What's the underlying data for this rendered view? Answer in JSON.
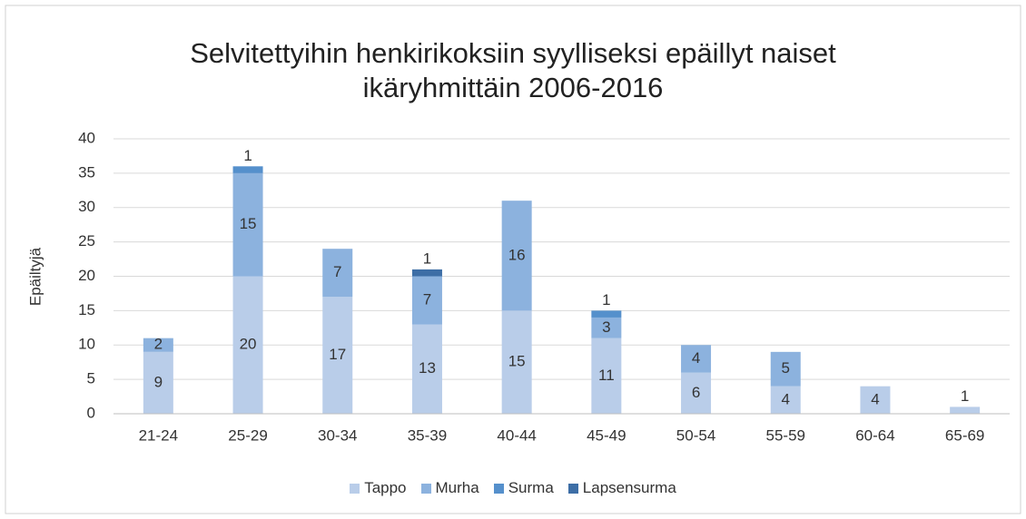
{
  "chart_data": {
    "type": "stacked_bar",
    "title": "Selvitettyihin henkirikoksiin syylliseksi epäillyt naiset ikäryhmittäin 2006-2016",
    "ylabel": "Epäiltyjä",
    "categories": [
      "21-24",
      "25-29",
      "30-34",
      "35-39",
      "40-44",
      "45-49",
      "50-54",
      "55-59",
      "60-64",
      "65-69"
    ],
    "series": [
      {
        "name": "Tappo",
        "color": "#b9cde9",
        "values": [
          9,
          20,
          17,
          13,
          15,
          11,
          6,
          4,
          4,
          1
        ]
      },
      {
        "name": "Murha",
        "color": "#8cb2de",
        "values": [
          2,
          15,
          7,
          7,
          16,
          3,
          4,
          5,
          null,
          null
        ]
      },
      {
        "name": "Surma",
        "color": "#5590cc",
        "values": [
          null,
          1,
          null,
          null,
          null,
          1,
          null,
          null,
          null,
          null
        ]
      },
      {
        "name": "Lapsensurma",
        "color": "#3d6ea6",
        "values": [
          null,
          null,
          null,
          1,
          null,
          null,
          null,
          null,
          null,
          null
        ]
      }
    ],
    "ylim": [
      0,
      40
    ],
    "yticks": [
      0,
      5,
      10,
      15,
      20,
      25,
      30,
      35,
      40
    ],
    "grid": true,
    "legend": "bottom"
  }
}
